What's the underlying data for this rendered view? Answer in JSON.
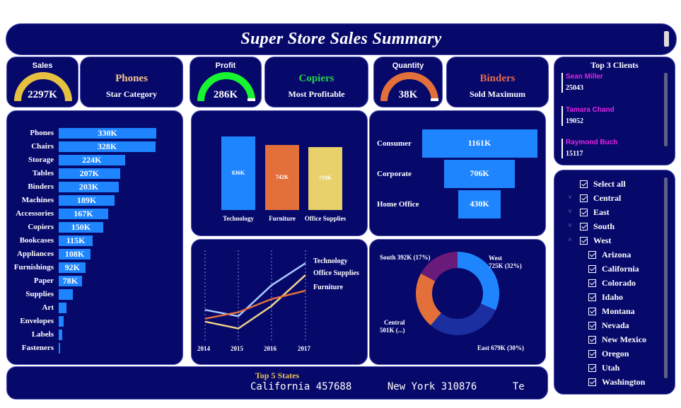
{
  "header": {
    "title": "Super Store Sales Summary"
  },
  "kpis": [
    {
      "title": "Sales",
      "value": "2297K",
      "color": "#e6c040",
      "fill": 0.9
    },
    {
      "title": "Profit",
      "value": "286K",
      "color": "#16f52f",
      "fill": 0.9
    },
    {
      "title": "Quantity",
      "value": "38K",
      "color": "#e3703b",
      "fill": 0.9
    }
  ],
  "category_cards": [
    {
      "name": "Phones",
      "subtitle": "Star Category",
      "color": "#f6c78c"
    },
    {
      "name": "Copiers",
      "subtitle": "Most Profitable",
      "color": "#20d34a"
    },
    {
      "name": "Binders",
      "subtitle": "Sold Maximum",
      "color": "#e36b4d"
    }
  ],
  "top_clients": {
    "title": "Top 3 Clients",
    "clients": [
      {
        "name": "Sean Miller",
        "value": "25043"
      },
      {
        "name": "Tamara Chand",
        "value": "19052"
      },
      {
        "name": "Raymond Buch",
        "value": "15117"
      }
    ]
  },
  "subcategory_chart": {
    "chart_data": {
      "type": "bar",
      "orientation": "horizontal",
      "categories": [
        "Phones",
        "Chairs",
        "Storage",
        "Tables",
        "Binders",
        "Machines",
        "Accessories",
        "Copiers",
        "Bookcases",
        "Appliances",
        "Furnishings",
        "Paper",
        "Supplies",
        "Art",
        "Envelopes",
        "Labels",
        "Fasteners"
      ],
      "values": [
        330,
        328,
        224,
        207,
        203,
        189,
        167,
        150,
        115,
        108,
        92,
        78,
        47,
        27,
        17,
        12,
        3
      ],
      "data_labels": [
        "330K",
        "328K",
        "224K",
        "207K",
        "203K",
        "189K",
        "167K",
        "150K",
        "115K",
        "108K",
        "92K",
        "78K",
        "",
        "",
        "",
        "",
        ""
      ],
      "unit": "K",
      "xlim": [
        0,
        330
      ]
    }
  },
  "category_chart": {
    "chart_data": {
      "type": "bar",
      "categories": [
        "Technology",
        "Furniture",
        "Office Supplies"
      ],
      "values": [
        836,
        742,
        719
      ],
      "data_labels": [
        "836K",
        "742K",
        "719K"
      ],
      "colors": [
        "#1e85ff",
        "#e3703b",
        "#e8d06a"
      ],
      "ylim": [
        0,
        836
      ]
    }
  },
  "segment_chart": {
    "chart_data": {
      "type": "bar",
      "orientation": "funnel",
      "categories": [
        "Consumer",
        "Corporate",
        "Home Office"
      ],
      "values": [
        1161,
        706,
        430
      ],
      "data_labels": [
        "1161K",
        "706K",
        "430K"
      ],
      "xlim": [
        0,
        1161
      ]
    }
  },
  "trend_chart": {
    "chart_data": {
      "type": "line",
      "x": [
        "2014",
        "2015",
        "2016",
        "2017"
      ],
      "series": [
        {
          "name": "Technology",
          "values": [
            176,
            163,
            226,
            271
          ],
          "color": "#a8c8ff"
        },
        {
          "name": "Office Supplies",
          "values": [
            152,
            138,
            184,
            247
          ],
          "color": "#f1d38a"
        },
        {
          "name": "Furniture",
          "values": [
            158,
            171,
            198,
            215
          ],
          "color": "#e3703b"
        }
      ],
      "ylim": [
        110,
        290
      ]
    }
  },
  "region_chart": {
    "chart_data": {
      "type": "pie",
      "donut": true,
      "categories": [
        "West",
        "East",
        "Central",
        "South"
      ],
      "values": [
        725,
        679,
        501,
        392
      ],
      "labels": [
        "West\n725K (32%)",
        "East 679K (30%)",
        "Central\n501K (...)",
        "South 392K (17%)"
      ],
      "colors": [
        "#1e85ff",
        "#1c2fa0",
        "#e3703b",
        "#6a1b7a"
      ]
    }
  },
  "region_slicer": {
    "items": [
      {
        "label": "Select all",
        "level": 0,
        "chevron": ""
      },
      {
        "label": "Central",
        "level": 0,
        "chevron": "˅"
      },
      {
        "label": "East",
        "level": 0,
        "chevron": "˅"
      },
      {
        "label": "South",
        "level": 0,
        "chevron": "˅"
      },
      {
        "label": "West",
        "level": 0,
        "chevron": "˄"
      },
      {
        "label": "Arizona",
        "level": 1,
        "chevron": ""
      },
      {
        "label": "California",
        "level": 1,
        "chevron": ""
      },
      {
        "label": "Colorado",
        "level": 1,
        "chevron": ""
      },
      {
        "label": "Idaho",
        "level": 1,
        "chevron": ""
      },
      {
        "label": "Montana",
        "level": 1,
        "chevron": ""
      },
      {
        "label": "Nevada",
        "level": 1,
        "chevron": ""
      },
      {
        "label": "New Mexico",
        "level": 1,
        "chevron": ""
      },
      {
        "label": "Oregon",
        "level": 1,
        "chevron": ""
      },
      {
        "label": "Utah",
        "level": 1,
        "chevron": ""
      },
      {
        "label": "Washington",
        "level": 1,
        "chevron": ""
      }
    ]
  },
  "ticker": {
    "title": "Top 5 States",
    "text": "California 457688      New York 310876      Te"
  }
}
